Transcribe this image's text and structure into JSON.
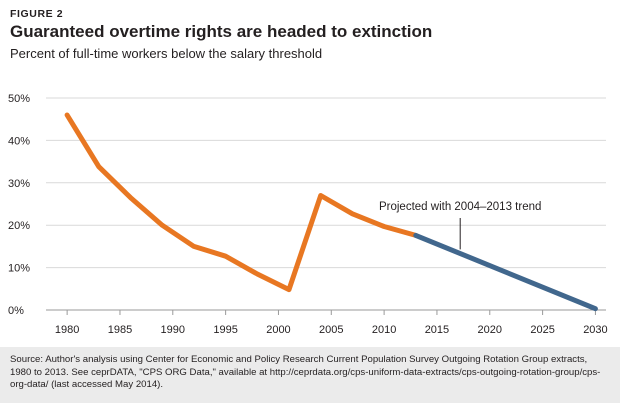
{
  "header": {
    "figure_label": "FIGURE 2",
    "title": "Guaranteed overtime rights are headed to extinction",
    "subtitle": "Percent of full-time workers below the salary threshold"
  },
  "chart_data": {
    "type": "line",
    "title": "Guaranteed overtime rights are headed to extinction",
    "subtitle": "Percent of full-time workers below the salary threshold",
    "xlabel": "",
    "ylabel": "",
    "xlim": [
      1978,
      2031
    ],
    "ylim": [
      0,
      50
    ],
    "x_ticks": [
      1980,
      1985,
      1990,
      1995,
      2000,
      2005,
      2010,
      2015,
      2020,
      2025,
      2030
    ],
    "y_ticks": [
      0,
      10,
      20,
      30,
      40,
      50
    ],
    "y_tick_labels": [
      "0%",
      "10%",
      "20%",
      "30%",
      "40%",
      "50%"
    ],
    "grid": "horizontal",
    "series": [
      {
        "color": "#e87722",
        "x": [
          1980,
          1983,
          1986,
          1989,
          1992,
          1995,
          1998,
          2001,
          2004,
          2007,
          2010,
          2013
        ],
        "y": [
          46,
          33.8,
          26.5,
          20,
          15,
          12.7,
          8.5,
          4.8,
          27,
          22.7,
          19.7,
          17.6
        ]
      },
      {
        "color": "#41678d",
        "x": [
          2013,
          2030
        ],
        "y": [
          17.6,
          0.3
        ]
      }
    ],
    "annotations": [
      {
        "text": "Projected with 2004–2013 trend",
        "x": 2017.2,
        "y": 14.3
      }
    ]
  },
  "footer": {
    "source": "Source: Author's analysis using Center for Economic and Policy Research Current Population Survey Outgoing Rotation Group extracts, 1980 to 2013. See ceprDATA, \"CPS ORG Data,\" available at http://ceprdata.org/cps-uniform-data-extracts/cps-outgoing-rotation-group/cps-org-data/ (last accessed May 2014)."
  }
}
